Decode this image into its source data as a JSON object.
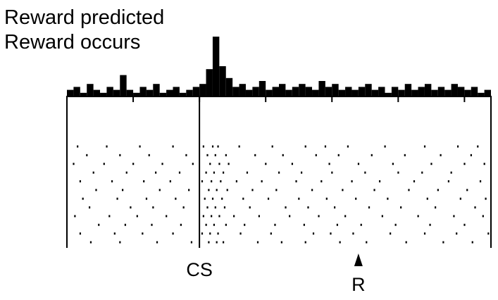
{
  "chart_data": {
    "type": "histogram",
    "title": "Reward predicted",
    "subtitle": "Reward occurs",
    "bins": [
      -1,
      -0.95,
      -0.9,
      -0.85,
      -0.8,
      -0.75,
      -0.7,
      -0.65,
      -0.6,
      -0.55,
      -0.5,
      -0.45,
      -0.4,
      -0.35,
      -0.3,
      -0.25,
      -0.2,
      -0.15,
      -0.1,
      -0.05,
      0,
      0.05,
      0.1,
      0.15,
      0.2,
      0.25,
      0.3,
      0.35,
      0.4,
      0.45,
      0.5,
      0.55,
      0.6,
      0.65,
      0.7,
      0.75,
      0.8,
      0.85,
      0.9,
      0.95,
      1,
      1.05,
      1.1,
      1.15,
      1.2,
      1.25,
      1.3,
      1.35,
      1.4,
      1.45,
      1.5,
      1.55,
      1.6,
      1.65,
      1.7,
      1.75,
      1.8,
      1.85,
      1.9,
      1.95,
      2,
      2.05,
      2.1,
      2.15,
      2.2
    ],
    "counts": [
      2,
      3,
      1,
      4,
      2,
      1,
      3,
      2,
      7,
      2,
      1,
      3,
      2,
      4,
      1,
      2,
      3,
      1,
      2,
      3,
      4,
      9,
      20,
      10,
      6,
      3,
      4,
      2,
      3,
      5,
      2,
      3,
      4,
      2,
      3,
      4,
      3,
      2,
      5,
      3,
      4,
      2,
      3,
      2,
      3,
      4,
      2,
      3,
      1,
      3,
      2,
      4,
      2,
      3,
      4,
      2,
      3,
      2,
      4,
      3,
      2,
      3,
      1,
      2
    ],
    "color": "#000000",
    "xlim": [
      -1,
      2.2
    ],
    "ylim": [
      0,
      20
    ],
    "xticks": [
      -0.5,
      0,
      0.5,
      1,
      1.5,
      2
    ],
    "events": [
      {
        "label": "CS",
        "x": 0
      },
      {
        "label": "R",
        "x": 1.2
      }
    ],
    "trials": [
      [
        -0.92,
        -0.7,
        -0.45,
        -0.2,
        0.03,
        0.1,
        0.14,
        0.3,
        0.55,
        0.8,
        0.95,
        1.12,
        1.4,
        1.7,
        1.95,
        2.1
      ],
      [
        -0.85,
        -0.6,
        -0.38,
        -0.1,
        0.06,
        0.12,
        0.2,
        0.42,
        0.63,
        0.88,
        1.05,
        1.3,
        1.55,
        1.82,
        2.05
      ],
      [
        -0.95,
        -0.72,
        -0.5,
        -0.28,
        -0.05,
        0.08,
        0.15,
        0.22,
        0.5,
        0.7,
        0.98,
        1.2,
        1.46,
        1.75,
        2.0,
        2.15
      ],
      [
        -0.8,
        -0.55,
        -0.33,
        -0.15,
        0.05,
        0.11,
        0.18,
        0.36,
        0.6,
        0.77,
        1.0,
        1.25,
        1.5,
        1.68,
        1.9
      ],
      [
        -0.9,
        -0.66,
        -0.42,
        -0.22,
        0.02,
        0.09,
        0.16,
        0.28,
        0.47,
        0.73,
        0.92,
        1.15,
        1.36,
        1.62,
        1.88,
        2.12
      ],
      [
        -0.78,
        -0.58,
        -0.3,
        -0.08,
        0.07,
        0.13,
        0.21,
        0.4,
        0.58,
        0.85,
        1.08,
        1.32,
        1.58,
        1.8,
        2.02
      ],
      [
        -0.88,
        -0.62,
        -0.4,
        -0.18,
        0.04,
        0.1,
        0.17,
        0.33,
        0.52,
        0.75,
        0.96,
        1.18,
        1.42,
        1.72,
        1.97,
        2.16
      ],
      [
        -0.83,
        -0.52,
        -0.35,
        -0.12,
        0.06,
        0.12,
        0.19,
        0.38,
        0.65,
        0.82,
        1.02,
        1.28,
        1.52,
        1.78,
        2.08
      ],
      [
        -0.94,
        -0.68,
        -0.47,
        -0.25,
        0.03,
        0.09,
        0.15,
        0.26,
        0.45,
        0.68,
        0.9,
        1.1,
        1.38,
        1.65,
        1.92,
        2.14
      ],
      [
        -0.76,
        -0.56,
        -0.36,
        -0.14,
        0.05,
        0.11,
        0.2,
        0.34,
        0.57,
        0.79,
        1.04,
        1.22,
        1.48,
        1.74,
        2.0
      ],
      [
        -0.9,
        -0.64,
        -0.43,
        -0.2,
        0.02,
        0.08,
        0.14,
        0.31,
        0.54,
        0.86,
        0.99,
        1.16,
        1.44,
        1.7,
        1.94,
        2.18
      ],
      [
        -0.82,
        -0.6,
        -0.32,
        -0.06,
        0.07,
        0.13,
        0.18,
        0.44,
        0.62,
        0.8,
        1.06,
        1.26,
        1.56,
        1.84,
        2.06
      ]
    ]
  }
}
